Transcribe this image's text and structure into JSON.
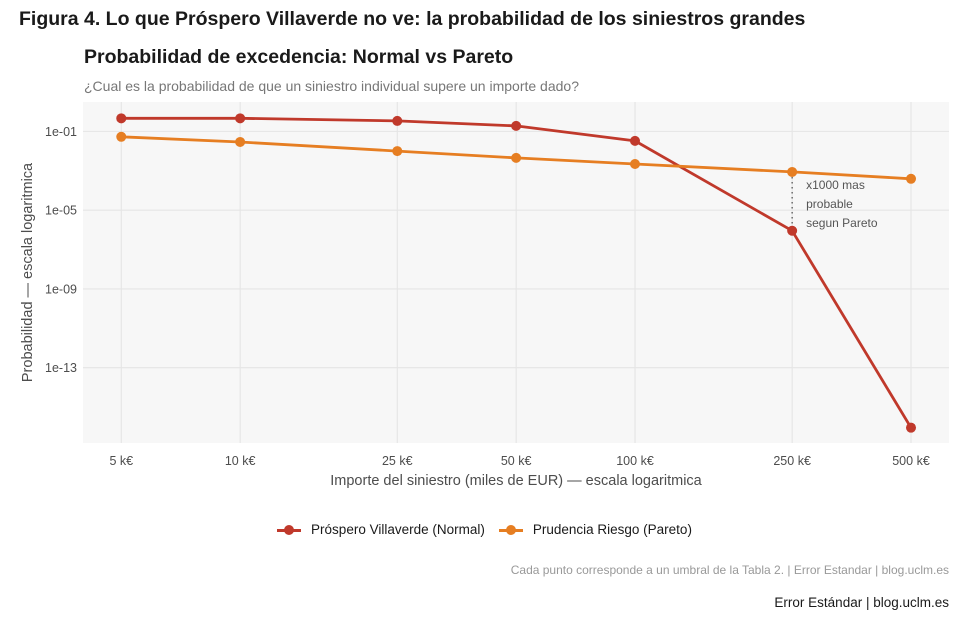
{
  "figure_title": "Figura 4. Lo que Próspero Villaverde no ve: la probabilidad de los siniestros grandes",
  "caption": "Cada punto corresponde a un umbral de la Tabla 2.  |  Error Estandar | blog.uclm.es",
  "credit": "Error Estándar | blog.uclm.es",
  "chart_data": {
    "type": "line",
    "title": "Probabilidad de excedencia: Normal vs Pareto",
    "subtitle": "¿Cual es la probabilidad de que un siniestro individual supere un importe dado?",
    "xlabel": "Importe del siniestro (miles de EUR) — escala logaritmica",
    "ylabel": "Probabilidad — escala logaritmica",
    "x_scale": "log",
    "y_scale": "log",
    "x": [
      5,
      10,
      25,
      50,
      100,
      250,
      500
    ],
    "x_tick_labels": [
      "5 k€",
      "10 k€",
      "25 k€",
      "50 k€",
      "100 k€",
      "250 k€",
      "500 k€"
    ],
    "y_ticks": [
      0.1,
      1e-05,
      1e-09,
      1e-13
    ],
    "y_tick_labels": [
      "1e-01",
      "1e-05",
      "1e-09",
      "1e-13"
    ],
    "xlim": [
      4,
      624
    ],
    "ylim": [
      1.5e-17,
      3.1
    ],
    "grid": true,
    "legend_position": "bottom",
    "series": [
      {
        "name": "Próspero Villaverde (Normal)",
        "color": "#c0392b",
        "values": [
          0.46,
          0.46,
          0.34,
          0.19,
          0.033,
          9e-07,
          9e-17
        ]
      },
      {
        "name": "Prudencia Riesgo (Pareto)",
        "color": "#e67e22",
        "values": [
          0.053,
          0.029,
          0.01,
          0.0045,
          0.0022,
          0.00087,
          0.00039
        ]
      }
    ],
    "annotation": {
      "x": 250,
      "lines": [
        "x1000 mas",
        "probable",
        "segun Pareto"
      ]
    }
  }
}
